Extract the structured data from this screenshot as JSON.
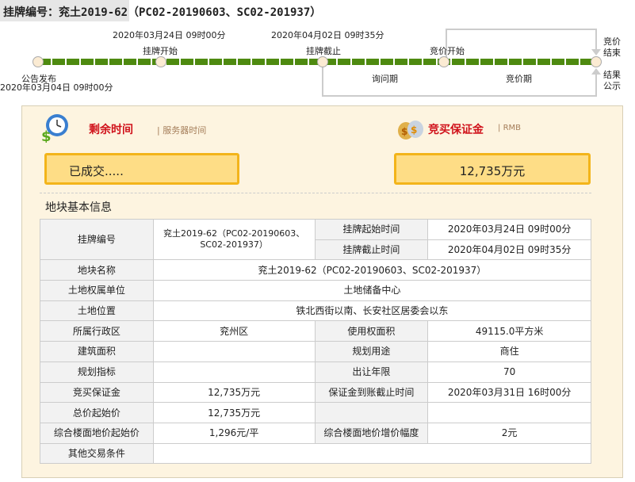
{
  "header": {
    "title": "挂牌编号：兖土2019-62（PC02-20190603、SC02-201937）"
  },
  "timeline": {
    "nodes": [
      {
        "label": "公告发布",
        "date": "2020年03月04日 09时00分"
      },
      {
        "label": "挂牌开始",
        "date": "2020年03月24日 09时00分"
      },
      {
        "label": "挂牌截止",
        "date": "2020年04月02日 09时35分"
      },
      {
        "label": "竞价开始"
      },
      {
        "label_top": "竞价结束",
        "label_bottom": "结果公示"
      }
    ],
    "periods": [
      "询问期",
      "竞价期"
    ],
    "colors": {
      "bar": "#4e8a10",
      "connector": "#cccccc"
    }
  },
  "countdown": {
    "title": "剩余时间",
    "sub": "服务器时间",
    "value": "已成交.....",
    "icon": "clock-dollar-icon"
  },
  "deposit": {
    "title": "竞买保证金",
    "sub": "RMB",
    "value": "12,735万元",
    "icon": "money-bags-icon"
  },
  "info": {
    "heading": "地块基本信息",
    "listing_no_label": "挂牌编号",
    "listing_no": "兖土2019-62（PC02-20190603、SC02-201937）",
    "start_label": "挂牌起始时间",
    "start": "2020年03月24日 09时00分",
    "end_label": "挂牌截止时间",
    "end": "2020年04月02日 09时35分",
    "name_label": "地块名称",
    "name": "兖土2019-62（PC02-20190603、SC02-201937）",
    "owner_label": "土地权属单位",
    "owner": "土地储备中心",
    "location_label": "土地位置",
    "location": "铁北西街以南、长安社区居委会以东",
    "district_label": "所属行政区",
    "district": "兖州区",
    "area_label": "使用权面积",
    "area": "49115.0平方米",
    "build_label": "建筑面积",
    "build": "",
    "use_label": "规划用途",
    "use": "商住",
    "plan_label": "规划指标",
    "plan": "",
    "years_label": "出让年限",
    "years": "70",
    "dep_label": "竞买保证金",
    "dep": "12,735万元",
    "dep_deadline_label": "保证金到账截止时间",
    "dep_deadline": "2020年03月31日 16时00分",
    "price_label": "总价起始价",
    "price": "12,735万元",
    "floor_label": "综合楼面地价起始价",
    "floor": "1,296元/平",
    "incr_label": "综合楼面地价增价幅度",
    "incr": "2元",
    "other_label": "其他交易条件",
    "other": ""
  }
}
